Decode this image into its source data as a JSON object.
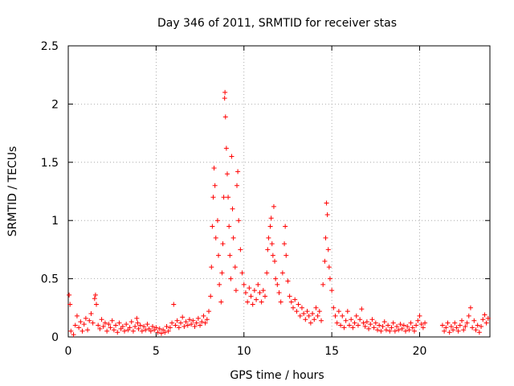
{
  "chart_data": {
    "type": "scatter",
    "title": "Day 346 of 2011, SRMTID for receiver stas",
    "xlabel": "GPS time / hours",
    "ylabel": "SRMTID / TECUs",
    "xlim": [
      0,
      24
    ],
    "ylim": [
      0,
      2.5
    ],
    "x_ticks": [
      0,
      5,
      10,
      15,
      20
    ],
    "x_tick_labels": [
      "0",
      "5",
      "10",
      "15",
      "20"
    ],
    "y_ticks": [
      0,
      0.5,
      1,
      1.5,
      2,
      2.5
    ],
    "y_tick_labels": [
      "0",
      "0.5",
      "1",
      "1.5",
      "2",
      "2.5"
    ],
    "grid": true,
    "marker": "+",
    "series": [
      {
        "name": "SRMTID",
        "color": "#ff0000",
        "points": [
          [
            0.05,
            0.36
          ],
          [
            0.1,
            0.28
          ],
          [
            0.15,
            0.05
          ],
          [
            0.3,
            0.02
          ],
          [
            0.4,
            0.1
          ],
          [
            0.5,
            0.18
          ],
          [
            0.6,
            0.08
          ],
          [
            0.7,
            0.13
          ],
          [
            0.8,
            0.05
          ],
          [
            0.9,
            0.11
          ],
          [
            1.0,
            0.16
          ],
          [
            1.1,
            0.06
          ],
          [
            1.2,
            0.14
          ],
          [
            1.3,
            0.2
          ],
          [
            1.4,
            0.12
          ],
          [
            1.5,
            0.33
          ],
          [
            1.55,
            0.36
          ],
          [
            1.6,
            0.28
          ],
          [
            1.7,
            0.1
          ],
          [
            1.8,
            0.07
          ],
          [
            1.9,
            0.15
          ],
          [
            2.0,
            0.09
          ],
          [
            2.1,
            0.12
          ],
          [
            2.2,
            0.05
          ],
          [
            2.3,
            0.11
          ],
          [
            2.4,
            0.08
          ],
          [
            2.5,
            0.14
          ],
          [
            2.6,
            0.06
          ],
          [
            2.7,
            0.1
          ],
          [
            2.8,
            0.04
          ],
          [
            2.9,
            0.12
          ],
          [
            3.0,
            0.07
          ],
          [
            3.1,
            0.09
          ],
          [
            3.2,
            0.05
          ],
          [
            3.3,
            0.11
          ],
          [
            3.4,
            0.06
          ],
          [
            3.5,
            0.08
          ],
          [
            3.6,
            0.13
          ],
          [
            3.7,
            0.05
          ],
          [
            3.8,
            0.09
          ],
          [
            3.9,
            0.16
          ],
          [
            3.95,
            0.12
          ],
          [
            4.0,
            0.07
          ],
          [
            4.1,
            0.1
          ],
          [
            4.2,
            0.05
          ],
          [
            4.3,
            0.09
          ],
          [
            4.4,
            0.06
          ],
          [
            4.5,
            0.11
          ],
          [
            4.6,
            0.07
          ],
          [
            4.7,
            0.05
          ],
          [
            4.8,
            0.09
          ],
          [
            4.9,
            0.06
          ],
          [
            5.0,
            0.08
          ],
          [
            5.1,
            0.04
          ],
          [
            5.2,
            0.07
          ],
          [
            5.3,
            0.03
          ],
          [
            5.4,
            0.06
          ],
          [
            5.5,
            0.04
          ],
          [
            5.6,
            0.09
          ],
          [
            5.7,
            0.05
          ],
          [
            5.8,
            0.08
          ],
          [
            5.9,
            0.12
          ],
          [
            6.0,
            0.28
          ],
          [
            6.1,
            0.1
          ],
          [
            6.2,
            0.14
          ],
          [
            6.3,
            0.08
          ],
          [
            6.4,
            0.12
          ],
          [
            6.5,
            0.17
          ],
          [
            6.6,
            0.09
          ],
          [
            6.7,
            0.13
          ],
          [
            6.8,
            0.1
          ],
          [
            6.9,
            0.15
          ],
          [
            7.0,
            0.11
          ],
          [
            7.1,
            0.14
          ],
          [
            7.2,
            0.09
          ],
          [
            7.3,
            0.12
          ],
          [
            7.4,
            0.16
          ],
          [
            7.5,
            0.1
          ],
          [
            7.6,
            0.13
          ],
          [
            7.7,
            0.18
          ],
          [
            7.8,
            0.12
          ],
          [
            7.9,
            0.15
          ],
          [
            8.0,
            0.22
          ],
          [
            8.1,
            0.35
          ],
          [
            8.15,
            0.6
          ],
          [
            8.2,
            0.95
          ],
          [
            8.25,
            1.2
          ],
          [
            8.3,
            1.45
          ],
          [
            8.35,
            1.3
          ],
          [
            8.4,
            0.85
          ],
          [
            8.5,
            1.0
          ],
          [
            8.55,
            0.7
          ],
          [
            8.6,
            0.45
          ],
          [
            8.7,
            0.3
          ],
          [
            8.75,
            0.55
          ],
          [
            8.8,
            0.8
          ],
          [
            8.85,
            1.2
          ],
          [
            8.9,
            2.05
          ],
          [
            8.92,
            2.1
          ],
          [
            8.95,
            1.89
          ],
          [
            9.0,
            1.62
          ],
          [
            9.05,
            1.4
          ],
          [
            9.1,
            1.2
          ],
          [
            9.15,
            0.95
          ],
          [
            9.2,
            0.7
          ],
          [
            9.25,
            0.5
          ],
          [
            9.3,
            1.55
          ],
          [
            9.35,
            1.1
          ],
          [
            9.4,
            0.85
          ],
          [
            9.5,
            0.6
          ],
          [
            9.55,
            0.4
          ],
          [
            9.6,
            1.3
          ],
          [
            9.65,
            1.42
          ],
          [
            9.7,
            1.0
          ],
          [
            9.8,
            0.75
          ],
          [
            9.9,
            0.55
          ],
          [
            10.0,
            0.45
          ],
          [
            10.1,
            0.38
          ],
          [
            10.2,
            0.3
          ],
          [
            10.3,
            0.42
          ],
          [
            10.4,
            0.35
          ],
          [
            10.5,
            0.28
          ],
          [
            10.6,
            0.4
          ],
          [
            10.7,
            0.32
          ],
          [
            10.8,
            0.45
          ],
          [
            10.9,
            0.38
          ],
          [
            11.0,
            0.3
          ],
          [
            11.1,
            0.4
          ],
          [
            11.2,
            0.35
          ],
          [
            11.3,
            0.55
          ],
          [
            11.35,
            0.75
          ],
          [
            11.4,
            0.85
          ],
          [
            11.5,
            0.95
          ],
          [
            11.55,
            1.02
          ],
          [
            11.6,
            0.8
          ],
          [
            11.65,
            0.7
          ],
          [
            11.7,
            1.12
          ],
          [
            11.75,
            0.65
          ],
          [
            11.8,
            0.5
          ],
          [
            11.9,
            0.45
          ],
          [
            12.0,
            0.38
          ],
          [
            12.1,
            0.3
          ],
          [
            12.2,
            0.55
          ],
          [
            12.3,
            0.8
          ],
          [
            12.35,
            0.95
          ],
          [
            12.4,
            0.7
          ],
          [
            12.5,
            0.48
          ],
          [
            12.6,
            0.35
          ],
          [
            12.7,
            0.3
          ],
          [
            12.8,
            0.25
          ],
          [
            12.9,
            0.32
          ],
          [
            13.0,
            0.22
          ],
          [
            13.1,
            0.28
          ],
          [
            13.2,
            0.18
          ],
          [
            13.3,
            0.25
          ],
          [
            13.4,
            0.2
          ],
          [
            13.5,
            0.15
          ],
          [
            13.6,
            0.22
          ],
          [
            13.7,
            0.18
          ],
          [
            13.8,
            0.12
          ],
          [
            13.9,
            0.2
          ],
          [
            14.0,
            0.15
          ],
          [
            14.1,
            0.25
          ],
          [
            14.2,
            0.18
          ],
          [
            14.3,
            0.22
          ],
          [
            14.4,
            0.14
          ],
          [
            14.5,
            0.45
          ],
          [
            14.6,
            0.65
          ],
          [
            14.65,
            0.85
          ],
          [
            14.7,
            1.15
          ],
          [
            14.75,
            1.05
          ],
          [
            14.8,
            0.75
          ],
          [
            14.85,
            0.6
          ],
          [
            14.9,
            0.5
          ],
          [
            15.0,
            0.4
          ],
          [
            15.1,
            0.25
          ],
          [
            15.2,
            0.18
          ],
          [
            15.3,
            0.12
          ],
          [
            15.4,
            0.22
          ],
          [
            15.5,
            0.1
          ],
          [
            15.6,
            0.18
          ],
          [
            15.7,
            0.08
          ],
          [
            15.8,
            0.14
          ],
          [
            15.9,
            0.22
          ],
          [
            16.0,
            0.1
          ],
          [
            16.1,
            0.15
          ],
          [
            16.2,
            0.08
          ],
          [
            16.3,
            0.12
          ],
          [
            16.4,
            0.18
          ],
          [
            16.5,
            0.1
          ],
          [
            16.6,
            0.15
          ],
          [
            16.7,
            0.24
          ],
          [
            16.8,
            0.12
          ],
          [
            16.9,
            0.09
          ],
          [
            17.0,
            0.13
          ],
          [
            17.1,
            0.07
          ],
          [
            17.2,
            0.11
          ],
          [
            17.3,
            0.15
          ],
          [
            17.4,
            0.08
          ],
          [
            17.5,
            0.12
          ],
          [
            17.6,
            0.06
          ],
          [
            17.7,
            0.1
          ],
          [
            17.8,
            0.05
          ],
          [
            17.9,
            0.09
          ],
          [
            18.0,
            0.13
          ],
          [
            18.1,
            0.06
          ],
          [
            18.2,
            0.1
          ],
          [
            18.3,
            0.05
          ],
          [
            18.4,
            0.08
          ],
          [
            18.5,
            0.12
          ],
          [
            18.6,
            0.05
          ],
          [
            18.7,
            0.09
          ],
          [
            18.8,
            0.06
          ],
          [
            18.9,
            0.11
          ],
          [
            19.0,
            0.07
          ],
          [
            19.1,
            0.1
          ],
          [
            19.2,
            0.05
          ],
          [
            19.3,
            0.09
          ],
          [
            19.4,
            0.06
          ],
          [
            19.5,
            0.12
          ],
          [
            19.6,
            0.08
          ],
          [
            19.7,
            0.05
          ],
          [
            19.8,
            0.1
          ],
          [
            19.9,
            0.14
          ],
          [
            20.0,
            0.18
          ],
          [
            20.1,
            0.11
          ],
          [
            20.2,
            0.08
          ],
          [
            20.3,
            0.12
          ],
          [
            21.3,
            0.1
          ],
          [
            21.4,
            0.05
          ],
          [
            21.5,
            0.08
          ],
          [
            21.6,
            0.12
          ],
          [
            21.7,
            0.04
          ],
          [
            21.8,
            0.09
          ],
          [
            21.9,
            0.06
          ],
          [
            22.0,
            0.12
          ],
          [
            22.1,
            0.08
          ],
          [
            22.2,
            0.05
          ],
          [
            22.3,
            0.1
          ],
          [
            22.4,
            0.14
          ],
          [
            22.5,
            0.06
          ],
          [
            22.6,
            0.09
          ],
          [
            22.7,
            0.12
          ],
          [
            22.8,
            0.18
          ],
          [
            22.9,
            0.25
          ],
          [
            23.0,
            0.08
          ],
          [
            23.1,
            0.14
          ],
          [
            23.2,
            0.06
          ],
          [
            23.3,
            0.1
          ],
          [
            23.4,
            0.04
          ],
          [
            23.5,
            0.09
          ],
          [
            23.6,
            0.15
          ],
          [
            23.7,
            0.19
          ],
          [
            23.8,
            0.12
          ],
          [
            23.9,
            0.16
          ]
        ]
      }
    ]
  }
}
